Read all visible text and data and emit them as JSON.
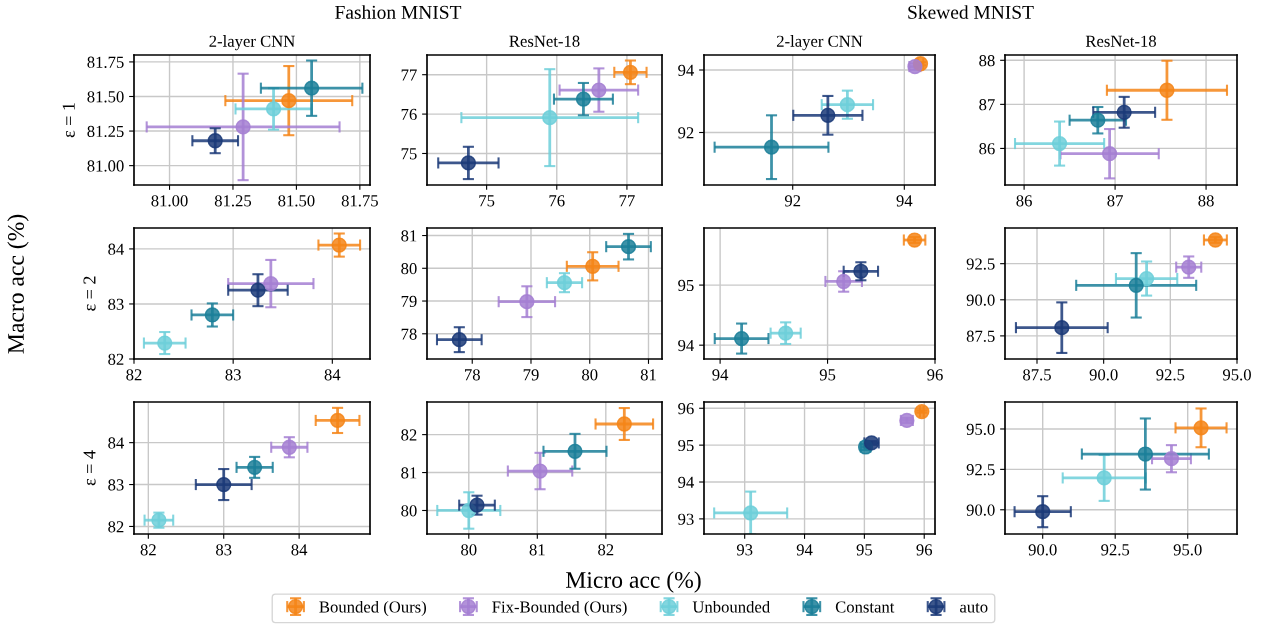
{
  "chart_data": [
    {
      "type": "scatter",
      "title": "2-layer CNN",
      "ylabel": "ε = 1",
      "annotations": [
        "Fashion MNIST",
        "Macro acc (%)",
        "Micro acc (%)"
      ],
      "legend": "bottom",
      "grid": true,
      "marker": "circle",
      "xlim": [
        80.86,
        81.79
      ],
      "ylim": [
        80.86,
        81.8
      ],
      "xticks": [
        {
          "value": 81,
          "label": "81.00"
        },
        {
          "value": 81.25,
          "label": "81.25"
        },
        {
          "value": 81.5,
          "label": "81.50"
        },
        {
          "value": 81.75,
          "label": "81.75"
        }
      ],
      "yticks": [
        {
          "value": 81,
          "label": "81.00"
        },
        {
          "value": 81.25,
          "label": "81.25"
        },
        {
          "value": 81.5,
          "label": "81.50"
        },
        {
          "value": 81.75,
          "label": "81.75"
        }
      ],
      "series": [
        {
          "name": "Bounded (Ours)",
          "color": "#f58518",
          "x": [
            81.47
          ],
          "values": [
            81.47
          ],
          "xerrors": [
            0.25
          ],
          "errors": [
            0.25
          ]
        },
        {
          "name": "Fix-Bounded (Ours)",
          "color": "#a47fd2",
          "x": [
            81.29
          ],
          "values": [
            81.28
          ],
          "xerrors": [
            0.38
          ],
          "errors": [
            0.385
          ]
        },
        {
          "name": "Unbounded",
          "color": "#6dcfd9",
          "x": [
            81.41
          ],
          "values": [
            81.41
          ],
          "xerrors": [
            0.15
          ],
          "errors": [
            0.15
          ]
        },
        {
          "name": "Constant",
          "color": "#1b7f99",
          "x": [
            81.56
          ],
          "values": [
            81.56
          ],
          "xerrors": [
            0.2
          ],
          "errors": [
            0.2
          ]
        },
        {
          "name": "auto",
          "color": "#1b3a78",
          "x": [
            81.18
          ],
          "values": [
            81.18
          ],
          "xerrors": [
            0.09
          ],
          "errors": [
            0.09
          ]
        }
      ]
    },
    {
      "type": "scatter",
      "title": "ResNet-18",
      "grid": true,
      "marker": "circle",
      "xlim": [
        74.15,
        77.5
      ],
      "ylim": [
        74.2,
        77.5
      ],
      "xticks": [
        75,
        76,
        77
      ],
      "yticks": [
        75,
        76,
        77
      ],
      "series": [
        {
          "color": "#f58518",
          "x": [
            77.05
          ],
          "values": [
            77.06
          ],
          "xerrors": [
            0.23
          ],
          "errors": [
            0.3
          ]
        },
        {
          "color": "#a47fd2",
          "x": [
            76.6
          ],
          "values": [
            76.61
          ],
          "xerrors": [
            0.56
          ],
          "errors": [
            0.55
          ]
        },
        {
          "color": "#6dcfd9",
          "x": [
            75.9
          ],
          "values": [
            75.91
          ],
          "xerrors": [
            1.26
          ],
          "errors": [
            1.23
          ]
        },
        {
          "color": "#1b7f99",
          "x": [
            76.38
          ],
          "values": [
            76.38
          ],
          "xerrors": [
            0.42
          ],
          "errors": [
            0.41
          ]
        },
        {
          "color": "#1b3a78",
          "x": [
            74.74
          ],
          "values": [
            74.76
          ],
          "xerrors": [
            0.43
          ],
          "errors": [
            0.41
          ]
        }
      ]
    },
    {
      "type": "scatter",
      "title": "2-layer CNN",
      "annotations": [
        "Skewed MNIST"
      ],
      "grid": true,
      "marker": "circle",
      "xlim": [
        90.41,
        94.55
      ],
      "ylim": [
        90.32,
        94.48
      ],
      "xticks": [
        92,
        94
      ],
      "yticks": [
        92,
        94
      ],
      "series": [
        {
          "color": "#f58518",
          "x": [
            94.29
          ],
          "values": [
            94.2
          ],
          "xerrors": [
            0.05
          ],
          "errors": [
            0.05
          ]
        },
        {
          "color": "#a47fd2",
          "x": [
            94.19
          ],
          "values": [
            94.11
          ],
          "xerrors": [
            0.1
          ],
          "errors": [
            0.1
          ]
        },
        {
          "color": "#6dcfd9",
          "x": [
            92.98
          ],
          "values": [
            92.89
          ],
          "xerrors": [
            0.46
          ],
          "errors": [
            0.45
          ]
        },
        {
          "color": "#1b7f99",
          "x": [
            91.62
          ],
          "values": [
            91.53
          ],
          "xerrors": [
            1.02
          ],
          "errors": [
            1.02
          ]
        },
        {
          "color": "#1b3a78",
          "x": [
            92.63
          ],
          "values": [
            92.55
          ],
          "xerrors": [
            0.62
          ],
          "errors": [
            0.62
          ]
        }
      ]
    },
    {
      "type": "scatter",
      "title": "ResNet-18",
      "grid": true,
      "marker": "circle",
      "xlim": [
        85.79,
        88.34
      ],
      "ylim": [
        85.17,
        88.12
      ],
      "xticks": [
        86,
        87,
        88
      ],
      "yticks": [
        86,
        87,
        88
      ],
      "series": [
        {
          "color": "#f58518",
          "x": [
            87.57
          ],
          "values": [
            87.32
          ],
          "xerrors": [
            0.66
          ],
          "errors": [
            0.67
          ]
        },
        {
          "color": "#a47fd2",
          "x": [
            86.94
          ],
          "values": [
            85.88
          ],
          "xerrors": [
            0.54
          ],
          "errors": [
            0.56
          ]
        },
        {
          "color": "#6dcfd9",
          "x": [
            86.39
          ],
          "values": [
            86.11
          ],
          "xerrors": [
            0.49
          ],
          "errors": [
            0.5
          ]
        },
        {
          "color": "#1b7f99",
          "x": [
            86.81
          ],
          "values": [
            86.64
          ],
          "xerrors": [
            0.31
          ],
          "errors": [
            0.3
          ]
        },
        {
          "color": "#1b3a78",
          "x": [
            87.1
          ],
          "values": [
            86.82
          ],
          "xerrors": [
            0.34
          ],
          "errors": [
            0.35
          ]
        }
      ]
    },
    {
      "type": "scatter",
      "ylabel": "ε = 2",
      "grid": true,
      "marker": "circle",
      "xlim": [
        82.0,
        84.38
      ],
      "ylim": [
        82.0,
        84.38
      ],
      "xticks": [
        82,
        83,
        84
      ],
      "yticks": [
        82,
        83,
        84
      ],
      "series": [
        {
          "color": "#f58518",
          "x": [
            84.07
          ],
          "values": [
            84.07
          ],
          "xerrors": [
            0.21
          ],
          "errors": [
            0.21
          ]
        },
        {
          "color": "#a47fd2",
          "x": [
            83.38
          ],
          "values": [
            83.37
          ],
          "xerrors": [
            0.43
          ],
          "errors": [
            0.43
          ]
        },
        {
          "color": "#6dcfd9",
          "x": [
            82.31
          ],
          "values": [
            82.29
          ],
          "xerrors": [
            0.21
          ],
          "errors": [
            0.2
          ]
        },
        {
          "color": "#1b7f99",
          "x": [
            82.79
          ],
          "values": [
            82.8
          ],
          "xerrors": [
            0.21
          ],
          "errors": [
            0.21
          ]
        },
        {
          "color": "#1b3a78",
          "x": [
            83.25
          ],
          "values": [
            83.25
          ],
          "xerrors": [
            0.3
          ],
          "errors": [
            0.29
          ]
        }
      ]
    },
    {
      "type": "scatter",
      "grid": true,
      "marker": "circle",
      "xlim": [
        77.23,
        81.23
      ],
      "ylim": [
        77.23,
        81.23
      ],
      "xticks": [
        78,
        79,
        80,
        81
      ],
      "yticks": [
        78,
        79,
        80,
        81
      ],
      "series": [
        {
          "color": "#f58518",
          "x": [
            80.05
          ],
          "values": [
            80.06
          ],
          "xerrors": [
            0.44
          ],
          "errors": [
            0.43
          ]
        },
        {
          "color": "#a47fd2",
          "x": [
            78.93
          ],
          "values": [
            78.98
          ],
          "xerrors": [
            0.48
          ],
          "errors": [
            0.47
          ]
        },
        {
          "color": "#6dcfd9",
          "x": [
            79.57
          ],
          "values": [
            79.56
          ],
          "xerrors": [
            0.3
          ],
          "errors": [
            0.29
          ]
        },
        {
          "color": "#1b7f99",
          "x": [
            80.66
          ],
          "values": [
            80.66
          ],
          "xerrors": [
            0.38
          ],
          "errors": [
            0.39
          ]
        },
        {
          "color": "#1b3a78",
          "x": [
            77.78
          ],
          "values": [
            77.82
          ],
          "xerrors": [
            0.38
          ],
          "errors": [
            0.38
          ]
        }
      ]
    },
    {
      "type": "scatter",
      "grid": true,
      "marker": "circle",
      "xlim": [
        93.85,
        96.0
      ],
      "ylim": [
        93.77,
        95.95
      ],
      "xticks": [
        94,
        95,
        96
      ],
      "yticks": [
        94,
        95
      ],
      "series": [
        {
          "color": "#f58518",
          "x": [
            95.81
          ],
          "values": [
            95.75
          ],
          "xerrors": [
            0.1
          ],
          "errors": [
            0.05
          ]
        },
        {
          "color": "#a47fd2",
          "x": [
            95.15
          ],
          "values": [
            95.06
          ],
          "xerrors": [
            0.17
          ],
          "errors": [
            0.17
          ]
        },
        {
          "color": "#6dcfd9",
          "x": [
            94.61
          ],
          "values": [
            94.2
          ],
          "xerrors": [
            0.14
          ],
          "errors": [
            0.18
          ]
        },
        {
          "color": "#1b7f99",
          "x": [
            94.2
          ],
          "values": [
            94.11
          ],
          "xerrors": [
            0.25
          ],
          "errors": [
            0.25
          ]
        },
        {
          "color": "#1b3a78",
          "x": [
            95.31
          ],
          "values": [
            95.23
          ],
          "xerrors": [
            0.16
          ],
          "errors": [
            0.15
          ]
        }
      ]
    },
    {
      "type": "scatter",
      "grid": true,
      "marker": "circle",
      "xlim": [
        86.3,
        95.0
      ],
      "ylim": [
        85.9,
        94.97
      ],
      "xticks": [
        {
          "value": 87.5,
          "label": "87.5"
        },
        {
          "value": 90,
          "label": "90.0"
        },
        {
          "value": 92.5,
          "label": "92.5"
        },
        {
          "value": 95,
          "label": "95.0"
        }
      ],
      "yticks": [
        {
          "value": 87.5,
          "label": "87.5"
        },
        {
          "value": 90,
          "label": "90.0"
        },
        {
          "value": 92.5,
          "label": "92.5"
        }
      ],
      "series": [
        {
          "color": "#f58518",
          "x": [
            94.19
          ],
          "values": [
            94.14
          ],
          "xerrors": [
            0.43
          ],
          "errors": [
            0.2
          ]
        },
        {
          "color": "#a47fd2",
          "x": [
            93.19
          ],
          "values": [
            92.26
          ],
          "xerrors": [
            0.47
          ],
          "errors": [
            0.74
          ]
        },
        {
          "color": "#6dcfd9",
          "x": [
            91.61
          ],
          "values": [
            91.47
          ],
          "xerrors": [
            1.15
          ],
          "errors": [
            1.18
          ]
        },
        {
          "color": "#1b7f99",
          "x": [
            91.22
          ],
          "values": [
            91.0
          ],
          "xerrors": [
            2.25
          ],
          "errors": [
            2.23
          ]
        },
        {
          "color": "#1b3a78",
          "x": [
            88.43
          ],
          "values": [
            88.07
          ],
          "xerrors": [
            1.72
          ],
          "errors": [
            1.75
          ]
        }
      ]
    },
    {
      "type": "scatter",
      "ylabel": "ε = 4",
      "grid": true,
      "marker": "circle",
      "xlim": [
        81.81,
        84.94
      ],
      "ylim": [
        81.82,
        84.97
      ],
      "xticks": [
        82,
        83,
        84
      ],
      "yticks": [
        82,
        83,
        84
      ],
      "series": [
        {
          "color": "#f58518",
          "x": [
            84.51
          ],
          "values": [
            84.53
          ],
          "xerrors": [
            0.29
          ],
          "errors": [
            0.3
          ]
        },
        {
          "color": "#a47fd2",
          "x": [
            83.87
          ],
          "values": [
            83.89
          ],
          "xerrors": [
            0.24
          ],
          "errors": [
            0.24
          ]
        },
        {
          "color": "#6dcfd9",
          "x": [
            82.14
          ],
          "values": [
            82.15
          ],
          "xerrors": [
            0.19
          ],
          "errors": [
            0.18
          ]
        },
        {
          "color": "#1b7f99",
          "x": [
            83.41
          ],
          "values": [
            83.41
          ],
          "xerrors": [
            0.24
          ],
          "errors": [
            0.25
          ]
        },
        {
          "color": "#1b3a78",
          "x": [
            83.0
          ],
          "values": [
            83.0
          ],
          "xerrors": [
            0.37
          ],
          "errors": [
            0.37
          ]
        }
      ]
    },
    {
      "type": "scatter",
      "grid": true,
      "marker": "circle",
      "xlim": [
        79.39,
        82.82
      ],
      "ylim": [
        79.38,
        82.86
      ],
      "xticks": [
        80,
        81,
        82
      ],
      "yticks": [
        80,
        81,
        82
      ],
      "series": [
        {
          "color": "#f58518",
          "x": [
            82.27
          ],
          "values": [
            82.28
          ],
          "xerrors": [
            0.42
          ],
          "errors": [
            0.42
          ]
        },
        {
          "color": "#a47fd2",
          "x": [
            81.04
          ],
          "values": [
            81.04
          ],
          "xerrors": [
            0.47
          ],
          "errors": [
            0.48
          ]
        },
        {
          "color": "#6dcfd9",
          "x": [
            80.0
          ],
          "values": [
            80.0
          ],
          "xerrors": [
            0.46
          ],
          "errors": [
            0.48
          ]
        },
        {
          "color": "#1b7f99",
          "x": [
            81.55
          ],
          "values": [
            81.56
          ],
          "xerrors": [
            0.46
          ],
          "errors": [
            0.46
          ]
        },
        {
          "color": "#1b3a78",
          "x": [
            80.12
          ],
          "values": [
            80.14
          ],
          "xerrors": [
            0.26
          ],
          "errors": [
            0.25
          ]
        }
      ]
    },
    {
      "type": "scatter",
      "grid": true,
      "marker": "circle",
      "xlim": [
        92.32,
        96.18
      ],
      "ylim": [
        92.59,
        96.17
      ],
      "xticks": [
        93,
        94,
        95,
        96
      ],
      "yticks": [
        93,
        94,
        95,
        96
      ],
      "series": [
        {
          "color": "#f58518",
          "x": [
            95.96
          ],
          "values": [
            95.91
          ],
          "xerrors": [
            0.03
          ],
          "errors": [
            0.03
          ]
        },
        {
          "color": "#a47fd2",
          "x": [
            95.71
          ],
          "values": [
            95.67
          ],
          "xerrors": [
            0.1
          ],
          "errors": [
            0.07
          ]
        },
        {
          "color": "#6dcfd9",
          "x": [
            93.1
          ],
          "values": [
            93.16
          ],
          "xerrors": [
            0.61
          ],
          "errors": [
            0.58
          ]
        },
        {
          "color": "#1b7f99",
          "x": [
            95.02
          ],
          "values": [
            94.95
          ],
          "xerrors": [
            0.08
          ],
          "errors": [
            0.08
          ]
        },
        {
          "color": "#1b3a78",
          "x": [
            95.12
          ],
          "values": [
            95.06
          ],
          "xerrors": [
            0.12
          ],
          "errors": [
            0.05
          ]
        }
      ]
    },
    {
      "type": "scatter",
      "grid": true,
      "marker": "circle",
      "xlim": [
        88.7,
        96.7
      ],
      "ylim": [
        88.5,
        96.67
      ],
      "xticks": [
        {
          "value": 90,
          "label": "90.0"
        },
        {
          "value": 92.5,
          "label": "92.5"
        },
        {
          "value": 95,
          "label": "95.0"
        }
      ],
      "yticks": [
        {
          "value": 90,
          "label": "90.0"
        },
        {
          "value": 92.5,
          "label": "92.5"
        },
        {
          "value": 95,
          "label": "95.0"
        }
      ],
      "series": [
        {
          "color": "#f58518",
          "x": [
            95.46
          ],
          "values": [
            95.07
          ],
          "xerrors": [
            0.88
          ],
          "errors": [
            1.2
          ]
        },
        {
          "color": "#a47fd2",
          "x": [
            94.44
          ],
          "values": [
            93.16
          ],
          "xerrors": [
            0.67
          ],
          "errors": [
            0.84
          ]
        },
        {
          "color": "#6dcfd9",
          "x": [
            92.12
          ],
          "values": [
            91.97
          ],
          "xerrors": [
            1.43
          ],
          "errors": [
            1.42
          ]
        },
        {
          "color": "#1b7f99",
          "x": [
            93.54
          ],
          "values": [
            93.45
          ],
          "xerrors": [
            2.19
          ],
          "errors": [
            2.2
          ]
        },
        {
          "color": "#1b3a78",
          "x": [
            90.0
          ],
          "values": [
            89.88
          ],
          "xerrors": [
            0.97
          ],
          "errors": [
            0.96
          ]
        }
      ]
    }
  ]
}
